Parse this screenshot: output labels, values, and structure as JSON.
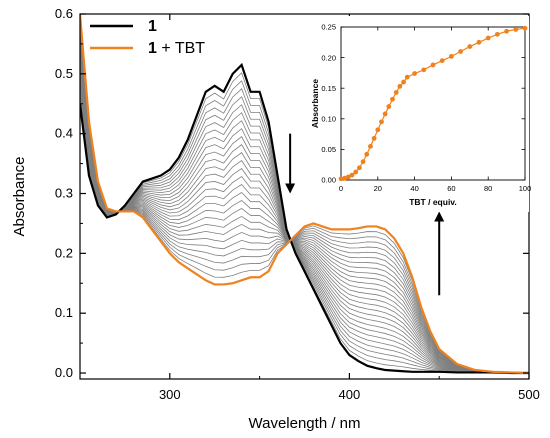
{
  "colors": {
    "initial": "#000000",
    "final": "#f0821e",
    "intermediate": "#7f7f7f",
    "inset_series": "#f0821e"
  },
  "chart_data": [
    {
      "type": "line",
      "title": "",
      "xlabel": "Wavelength / nm",
      "ylabel": "Absorbance",
      "xlim": [
        250,
        500
      ],
      "ylim": [
        -0.01,
        0.6
      ],
      "xticks": [
        300,
        400,
        500
      ],
      "yticks": [
        0.0,
        0.1,
        0.2,
        0.3,
        0.4,
        0.5,
        0.6
      ],
      "ytick_labels": [
        "0.0",
        "0.1",
        "0.2",
        "0.3",
        "0.4",
        "0.5",
        "0.6"
      ],
      "legend": {
        "placement": "top-left",
        "entries": [
          {
            "label_bold": "1",
            "label_rest": "",
            "series": "initial"
          },
          {
            "label_bold": "1",
            "label_rest": " + TBT",
            "series": "final"
          }
        ]
      },
      "annotations": [
        {
          "type": "arrow",
          "direction": "down",
          "x": 367,
          "y_from": 0.4,
          "y_to": 0.3
        },
        {
          "type": "arrow",
          "direction": "up",
          "x": 450,
          "y_from": 0.13,
          "y_to": 0.27
        }
      ],
      "intermediate_count": 26,
      "x": [
        250,
        255,
        260,
        265,
        270,
        275,
        280,
        285,
        290,
        295,
        300,
        305,
        310,
        315,
        320,
        325,
        330,
        335,
        340,
        345,
        350,
        355,
        360,
        365,
        370,
        375,
        380,
        385,
        390,
        395,
        400,
        405,
        410,
        415,
        420,
        425,
        430,
        435,
        440,
        445,
        450,
        460,
        470,
        480,
        490,
        500
      ],
      "series": [
        {
          "key": "initial",
          "values": [
            0.45,
            0.33,
            0.28,
            0.26,
            0.265,
            0.28,
            0.3,
            0.32,
            0.325,
            0.33,
            0.34,
            0.36,
            0.39,
            0.43,
            0.47,
            0.48,
            0.47,
            0.5,
            0.515,
            0.47,
            0.47,
            0.42,
            0.33,
            0.24,
            0.2,
            0.17,
            0.14,
            0.11,
            0.08,
            0.05,
            0.03,
            0.02,
            0.012,
            0.008,
            0.005,
            0.004,
            0.003,
            0.002,
            0.002,
            0.002,
            0.002,
            0.001,
            0.001,
            0.001,
            0.0,
            0.0
          ]
        },
        {
          "key": "final",
          "values": [
            0.6,
            0.42,
            0.32,
            0.275,
            0.27,
            0.27,
            0.27,
            0.26,
            0.24,
            0.22,
            0.2,
            0.185,
            0.175,
            0.165,
            0.155,
            0.148,
            0.148,
            0.15,
            0.155,
            0.16,
            0.16,
            0.17,
            0.2,
            0.215,
            0.23,
            0.245,
            0.25,
            0.245,
            0.24,
            0.24,
            0.24,
            0.242,
            0.245,
            0.245,
            0.24,
            0.225,
            0.2,
            0.16,
            0.11,
            0.07,
            0.04,
            0.015,
            0.005,
            0.002,
            0.001,
            0.0
          ]
        }
      ]
    },
    {
      "type": "scatter",
      "title": "",
      "xlabel": "TBT / equiv.",
      "ylabel": "Absorbance",
      "xlim": [
        0,
        100
      ],
      "ylim": [
        0,
        0.25
      ],
      "xticks": [
        0,
        20,
        40,
        60,
        80,
        100
      ],
      "yticks": [
        0.0,
        0.05,
        0.1,
        0.15,
        0.2,
        0.25
      ],
      "ytick_labels": [
        "0.00",
        "0.05",
        "0.10",
        "0.15",
        "0.20",
        "0.25"
      ],
      "x": [
        0,
        2,
        4,
        6,
        8,
        10,
        12,
        14,
        16,
        18,
        20,
        22,
        24,
        26,
        28,
        30,
        32,
        34,
        36,
        40,
        45,
        50,
        55,
        60,
        65,
        70,
        75,
        80,
        85,
        90,
        95,
        100
      ],
      "values": [
        0.002,
        0.003,
        0.005,
        0.008,
        0.013,
        0.02,
        0.03,
        0.042,
        0.055,
        0.068,
        0.082,
        0.095,
        0.108,
        0.12,
        0.132,
        0.143,
        0.153,
        0.16,
        0.168,
        0.174,
        0.18,
        0.188,
        0.195,
        0.202,
        0.21,
        0.218,
        0.225,
        0.232,
        0.238,
        0.243,
        0.246,
        0.248
      ]
    }
  ]
}
